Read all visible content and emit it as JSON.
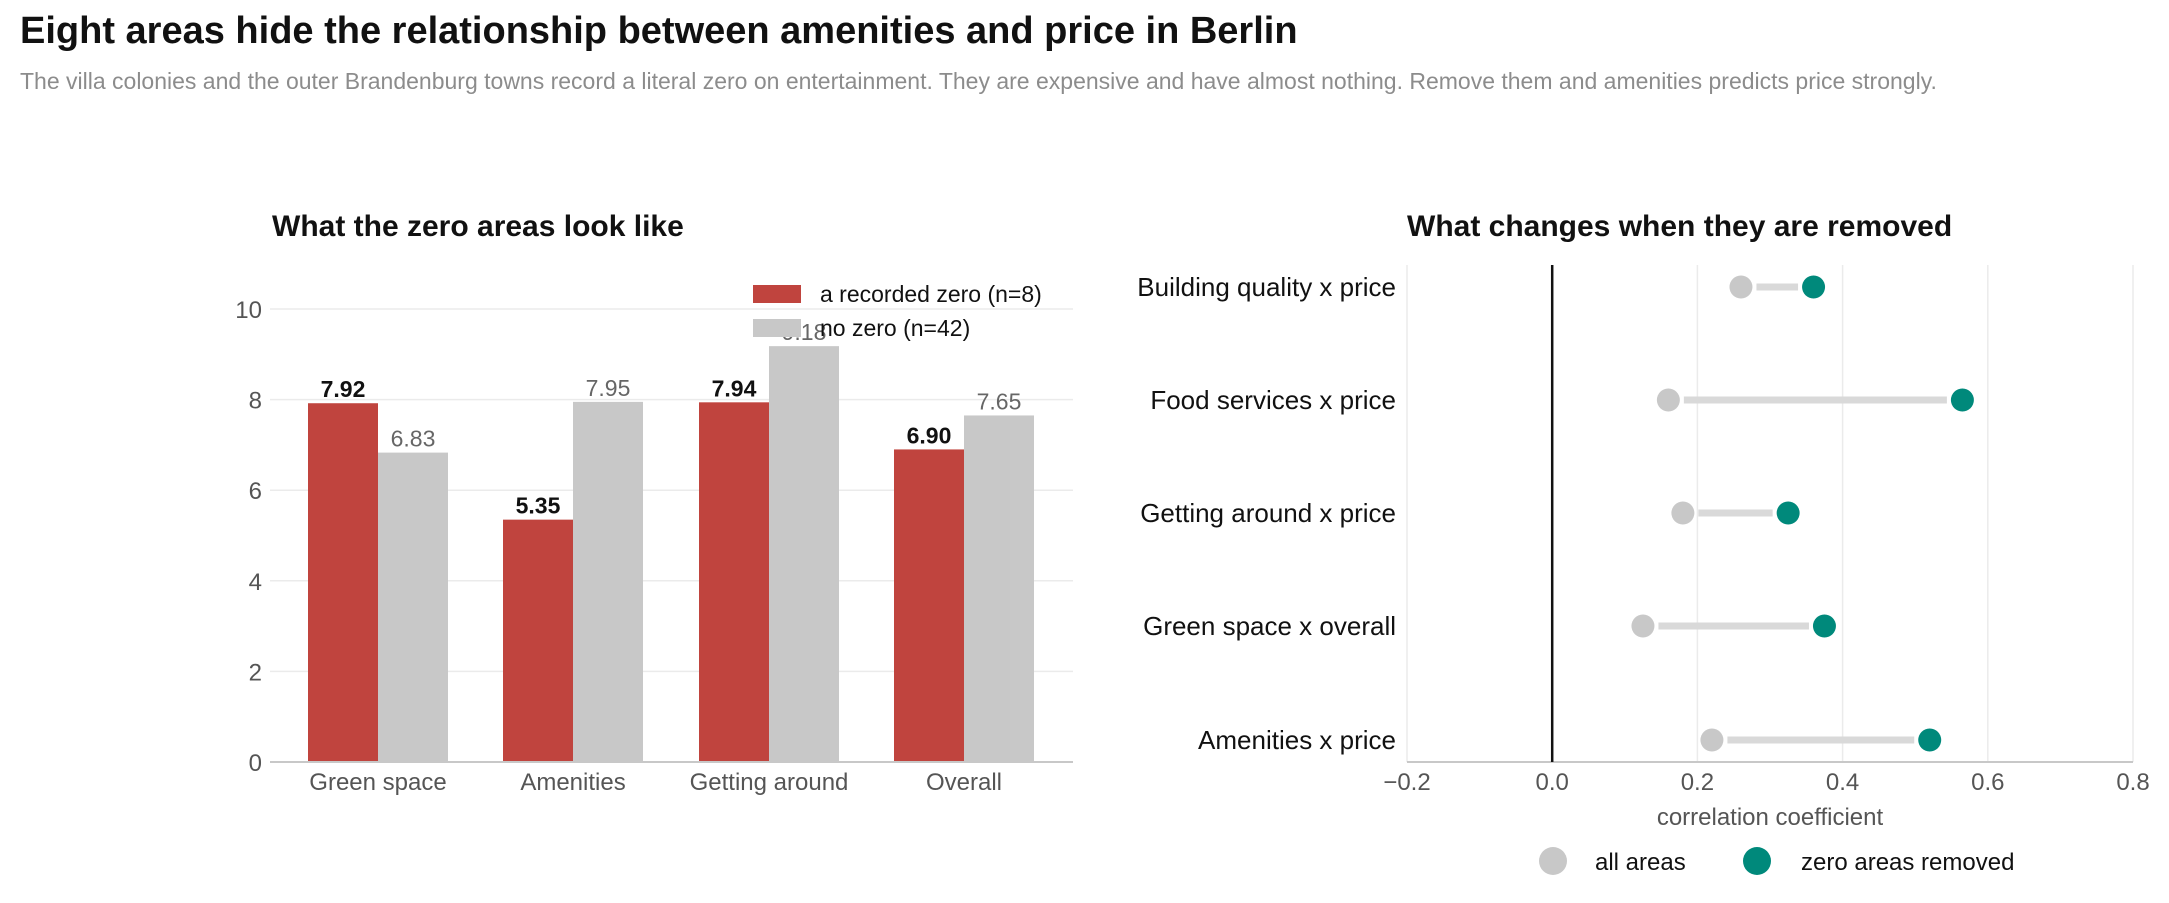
{
  "header": {
    "title": "Eight areas hide the relationship between amenities and price in Berlin",
    "subtitle": "The villa colonies and the outer Brandenburg towns record a literal zero on entertainment. They are expensive and have almost nothing. Remove them and amenities predicts price strongly."
  },
  "colors": {
    "zero": "#c0443e",
    "nozero": "#c8c8c8",
    "removed": "#00897b",
    "all": "#c8c8c8",
    "connector": "#d9d9d9"
  },
  "chart_data": [
    {
      "type": "bar",
      "title": "What the zero areas look like",
      "categories": [
        "Green space",
        "Amenities",
        "Getting around",
        "Overall"
      ],
      "series": [
        {
          "name": "a recorded zero (n=8)",
          "values": [
            7.92,
            5.35,
            7.94,
            6.9
          ],
          "labels": [
            "7.92",
            "5.35",
            "7.94",
            "6.90"
          ]
        },
        {
          "name": "no zero (n=42)",
          "values": [
            6.83,
            7.95,
            9.18,
            7.65
          ],
          "labels": [
            "6.83",
            "7.95",
            "9.18",
            "7.65"
          ]
        }
      ],
      "ylim": [
        0,
        11
      ],
      "yticks": [
        "0",
        "2",
        "4",
        "6",
        "8",
        "10"
      ],
      "legend": "top-right",
      "grid": true
    },
    {
      "type": "dumbbell",
      "title": "What changes when they are removed",
      "categories": [
        "Building quality x price",
        "Food services x price",
        "Getting around x price",
        "Green space x overall",
        "Amenities x price"
      ],
      "series": [
        {
          "name": "all areas",
          "values": [
            0.26,
            0.16,
            0.18,
            0.125,
            0.22
          ]
        },
        {
          "name": "zero areas removed",
          "values": [
            0.36,
            0.565,
            0.325,
            0.375,
            0.52
          ]
        }
      ],
      "xlim": [
        -0.2,
        0.8
      ],
      "xticks": [
        "−0.2",
        "0.0",
        "0.2",
        "0.4",
        "0.6",
        "0.8"
      ],
      "xlabel": "correlation coefficient",
      "legend": "bottom",
      "grid": true
    }
  ]
}
